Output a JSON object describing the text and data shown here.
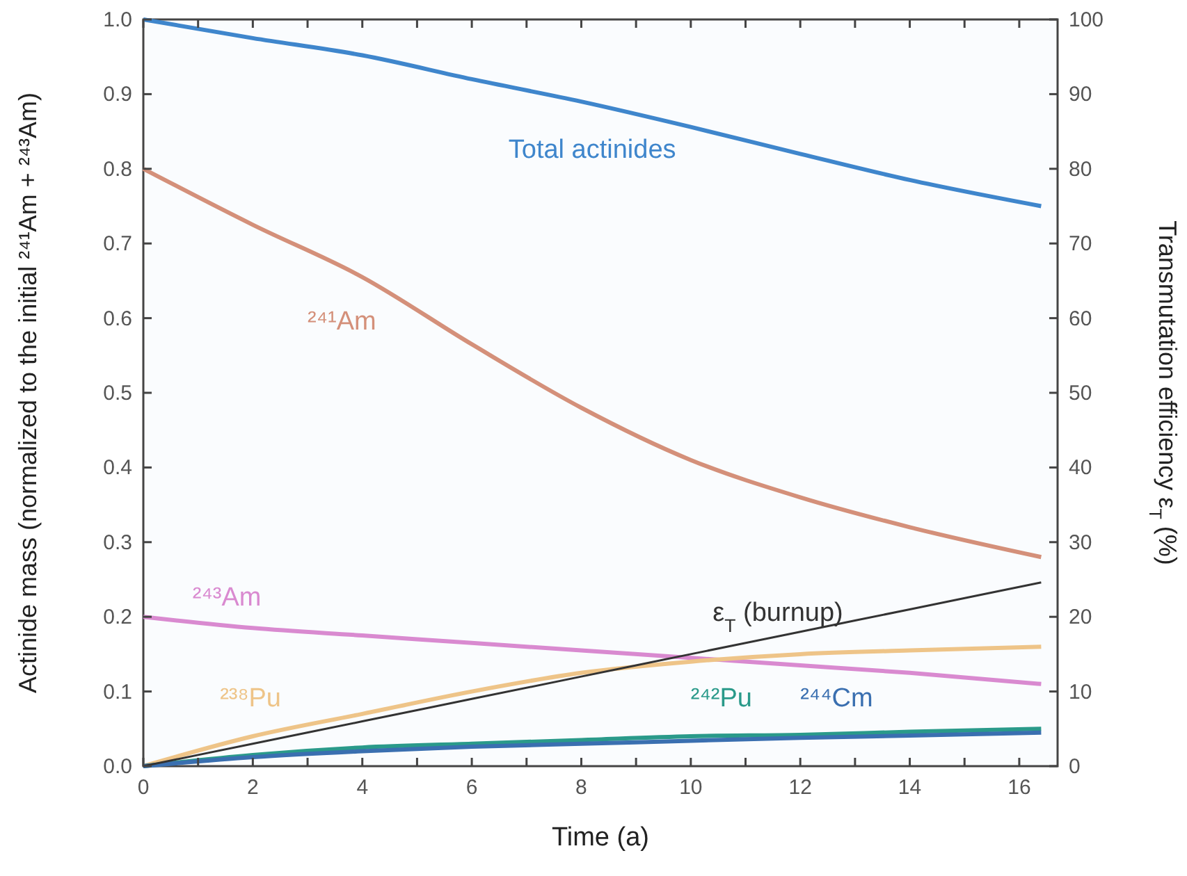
{
  "chart_data": {
    "type": "line",
    "xlabel": "Time  (a)",
    "ylabel": "Actinide mass (normalized to the initial ²⁴¹Am + ²⁴³Am)",
    "y2label": "Transmutation efficiency ε$_{T}$ (%)",
    "x": [
      0,
      2,
      4,
      6,
      8,
      10,
      12,
      14,
      16.4
    ],
    "series": [
      {
        "name": "Total actinides",
        "color": "#3f86cc",
        "values": [
          1.0,
          0.975,
          0.952,
          0.92,
          0.89,
          0.856,
          0.82,
          0.785,
          0.75
        ]
      },
      {
        "name": "²⁴¹Am",
        "color": "#d4907a",
        "values": [
          0.8,
          0.725,
          0.655,
          0.565,
          0.48,
          0.41,
          0.36,
          0.32,
          0.28
        ]
      },
      {
        "name": "²⁴³Am",
        "color": "#d98ad0",
        "values": [
          0.2,
          0.185,
          0.175,
          0.165,
          0.155,
          0.145,
          0.135,
          0.125,
          0.11
        ]
      },
      {
        "name": "²³⁸Pu",
        "color": "#eec488",
        "values": [
          0.0,
          0.04,
          0.07,
          0.1,
          0.125,
          0.14,
          0.15,
          0.155,
          0.16
        ]
      },
      {
        "name": "²⁴²Pu",
        "color": "#2a9a8a",
        "values": [
          0.0,
          0.015,
          0.025,
          0.03,
          0.035,
          0.04,
          0.042,
          0.046,
          0.05
        ]
      },
      {
        "name": "²⁴⁴Cm",
        "color": "#3a6fb0",
        "values": [
          0.0,
          0.012,
          0.02,
          0.026,
          0.03,
          0.034,
          0.038,
          0.041,
          0.045
        ]
      },
      {
        "name": "ε$_{T}$ (burnup)",
        "color": "#333333",
        "axis": "y2",
        "values": [
          0,
          3,
          6,
          9,
          12,
          15,
          18,
          21,
          24.6
        ]
      }
    ],
    "xlim": [
      0,
      16.7
    ],
    "ylim": [
      0,
      1
    ],
    "y2lim": [
      0,
      100
    ],
    "xticks": [
      0,
      {
        "value": 1,
        "label": null
      },
      2,
      {
        "value": 3,
        "label": null
      },
      4,
      {
        "value": 5,
        "label": null
      },
      6,
      {
        "value": 7,
        "label": null
      },
      8,
      {
        "value": 9,
        "label": null
      },
      10,
      {
        "value": 11,
        "label": null
      },
      12,
      {
        "value": 13,
        "label": null
      },
      14,
      {
        "value": 15,
        "label": null
      },
      16
    ],
    "yticks": [
      {
        "value": 0,
        "label": "0.0"
      },
      0.1,
      0.2,
      0.3,
      0.4,
      0.5,
      0.6,
      0.7,
      0.8,
      0.9,
      {
        "value": 1,
        "label": "1.0"
      }
    ],
    "y2ticks": [
      0,
      10,
      20,
      30,
      40,
      50,
      60,
      70,
      80,
      90,
      100
    ],
    "grid": false,
    "marker": "none",
    "line_style": "solid"
  }
}
